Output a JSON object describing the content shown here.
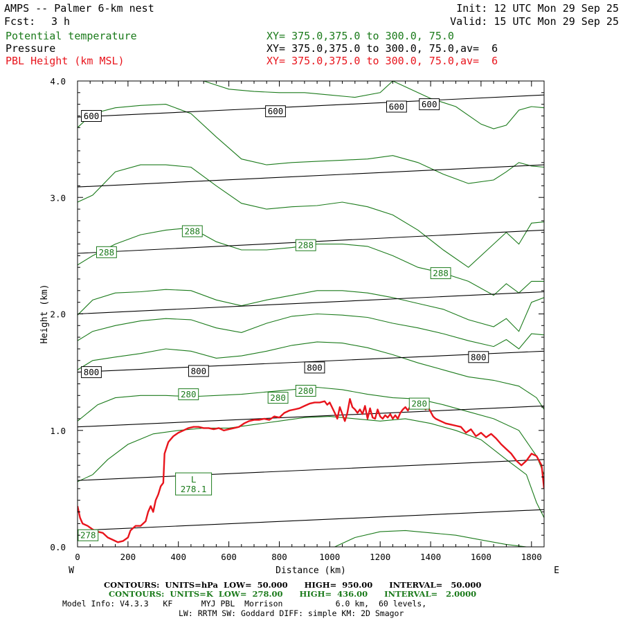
{
  "header": {
    "title": "AMPS -- Palmer 6-km nest",
    "fcst_label": "Fcst:",
    "fcst_value": "3 h",
    "init": "Init: 12 UTC Mon 29 Sep 25",
    "valid": "Valid: 15 UTC Mon 29 Sep 25"
  },
  "legend": [
    {
      "name": "Potential temperature",
      "xy": "XY= 375.0,375.0 to 300.0, 75.0",
      "color": "#1a7a1a"
    },
    {
      "name": "Pressure",
      "xy": "XY= 375.0,375.0 to 300.0, 75.0,av=  6",
      "color": "#000000"
    },
    {
      "name": "PBL Height (km MSL)",
      "xy": "XY= 375.0,375.0 to 300.0, 75.0,av=  6",
      "color": "#e8141c"
    }
  ],
  "footer": {
    "pressure_contours": "CONTOURS:  UNITS=hPa  LOW=  50.000      HIGH=  950.00      INTERVAL=   50.000",
    "theta_contours": "CONTOURS:  UNITS=K  LOW=  278.00      HIGH=  436.00      INTERVAL=   2.0000",
    "model_info_1": "Model Info: V4.3.3   KF      MYJ PBL  Morrison           6.0 km,  60 levels,",
    "model_info_2": "LW: RRTM SW: Goddard DIFF: simple KM: 2D Smagor"
  },
  "chart_data": {
    "type": "line",
    "xlabel": "Distance (km)",
    "ylabel": "Height (km)",
    "xlim": [
      0,
      1850
    ],
    "ylim": [
      0,
      4.0
    ],
    "x_ticks": [
      0,
      200,
      400,
      600,
      800,
      1000,
      1200,
      1400,
      1600,
      1800
    ],
    "x_tick_labels": [
      "0",
      "200",
      "400",
      "600",
      "800",
      "1000",
      "1200",
      "1400",
      "1600",
      "1800"
    ],
    "y_ticks": [
      0,
      1,
      2,
      3,
      4
    ],
    "y_tick_labels": [
      "0.0",
      "1.0",
      "2.0",
      "3.0",
      "4.0"
    ],
    "left_end_label": "W",
    "right_end_label": "E",
    "colors": {
      "pressure": "#000000",
      "theta": "#1a7a1a",
      "pbl": "#e8141c"
    },
    "pressure_isobars": [
      {
        "name": "isobar-a",
        "x": [
          0,
          1850
        ],
        "y": [
          0.14,
          0.32
        ]
      },
      {
        "name": "isobar-b",
        "x": [
          0,
          1850
        ],
        "y": [
          0.57,
          0.75
        ]
      },
      {
        "name": "isobar-c",
        "x": [
          0,
          1850
        ],
        "y": [
          1.03,
          1.21
        ]
      },
      {
        "name": "isobar-800",
        "x": [
          0,
          1850
        ],
        "y": [
          1.5,
          1.68
        ]
      },
      {
        "name": "isobar-d",
        "x": [
          0,
          1850
        ],
        "y": [
          2.0,
          2.19
        ]
      },
      {
        "name": "isobar-e",
        "x": [
          0,
          1850
        ],
        "y": [
          2.52,
          2.72
        ]
      },
      {
        "name": "isobar-f",
        "x": [
          0,
          1850
        ],
        "y": [
          3.09,
          3.28
        ]
      },
      {
        "name": "isobar-600",
        "x": [
          0,
          1850
        ],
        "y": [
          3.69,
          3.88
        ]
      }
    ],
    "pressure_labels": [
      {
        "text": "800",
        "x": 55,
        "y": 1.5
      },
      {
        "text": "800",
        "x": 480,
        "y": 1.51
      },
      {
        "text": "800",
        "x": 940,
        "y": 1.54
      },
      {
        "text": "800",
        "x": 1590,
        "y": 1.63
      },
      {
        "text": "600",
        "x": 55,
        "y": 3.7
      },
      {
        "text": "600",
        "x": 785,
        "y": 3.74
      },
      {
        "text": "600",
        "x": 1265,
        "y": 3.78
      },
      {
        "text": "600",
        "x": 1395,
        "y": 3.8
      }
    ],
    "theta_isentropes": [
      {
        "name": "theta-278",
        "x": [
          1020,
          1100,
          1200,
          1300,
          1400,
          1500,
          1600,
          1700,
          1780,
          1850
        ],
        "y": [
          0.0,
          0.08,
          0.13,
          0.14,
          0.12,
          0.1,
          0.06,
          0.02,
          0.0,
          0.0
        ]
      },
      {
        "name": "theta-280",
        "x": [
          0,
          60,
          120,
          200,
          300,
          400,
          500,
          600,
          700,
          800,
          900,
          1000,
          1100,
          1200,
          1300,
          1400,
          1500,
          1600,
          1700,
          1780,
          1820,
          1850
        ],
        "y": [
          0.56,
          0.62,
          0.75,
          0.88,
          0.97,
          1.0,
          1.02,
          1.02,
          1.05,
          1.08,
          1.11,
          1.12,
          1.1,
          1.08,
          1.1,
          1.06,
          1.0,
          0.92,
          0.75,
          0.62,
          0.38,
          0.25
        ]
      },
      {
        "name": "theta-282",
        "x": [
          0,
          80,
          150,
          250,
          350,
          450,
          550,
          650,
          750,
          850,
          950,
          1050,
          1150,
          1250,
          1350,
          1450,
          1550,
          1650,
          1750,
          1820,
          1850
        ],
        "y": [
          1.08,
          1.22,
          1.28,
          1.3,
          1.3,
          1.29,
          1.3,
          1.31,
          1.33,
          1.35,
          1.37,
          1.35,
          1.31,
          1.28,
          1.27,
          1.22,
          1.16,
          1.1,
          1.0,
          0.78,
          0.62
        ]
      },
      {
        "name": "theta-284",
        "x": [
          0,
          60,
          150,
          250,
          350,
          450,
          550,
          650,
          750,
          850,
          950,
          1050,
          1150,
          1250,
          1350,
          1450,
          1550,
          1650,
          1750,
          1820,
          1850
        ],
        "y": [
          1.52,
          1.6,
          1.63,
          1.66,
          1.7,
          1.68,
          1.62,
          1.64,
          1.68,
          1.73,
          1.76,
          1.75,
          1.71,
          1.65,
          1.58,
          1.52,
          1.46,
          1.43,
          1.38,
          1.28,
          1.18
        ]
      },
      {
        "name": "theta-286",
        "x": [
          0,
          60,
          150,
          250,
          350,
          450,
          550,
          650,
          750,
          850,
          950,
          1050,
          1150,
          1250,
          1350,
          1450,
          1550,
          1650,
          1700,
          1750,
          1800,
          1850
        ],
        "y": [
          1.77,
          1.85,
          1.9,
          1.94,
          1.96,
          1.95,
          1.88,
          1.84,
          1.92,
          1.98,
          2.0,
          1.99,
          1.97,
          1.92,
          1.88,
          1.83,
          1.77,
          1.72,
          1.78,
          1.7,
          1.83,
          1.82
        ]
      },
      {
        "name": "theta-288",
        "x": [
          0,
          60,
          150,
          250,
          350,
          450,
          550,
          650,
          750,
          850,
          950,
          1050,
          1150,
          1250,
          1350,
          1450,
          1550,
          1650,
          1700,
          1750,
          1800,
          1850
        ],
        "y": [
          1.99,
          2.12,
          2.18,
          2.19,
          2.21,
          2.2,
          2.12,
          2.07,
          2.12,
          2.16,
          2.2,
          2.2,
          2.18,
          2.14,
          2.09,
          2.04,
          1.95,
          1.89,
          1.96,
          1.85,
          2.1,
          2.14
        ]
      },
      {
        "name": "theta-290",
        "x": [
          0,
          60,
          150,
          250,
          350,
          450,
          550,
          650,
          750,
          850,
          950,
          1050,
          1150,
          1250,
          1350,
          1450,
          1550,
          1650,
          1700,
          1750,
          1800,
          1850
        ],
        "y": [
          2.42,
          2.5,
          2.6,
          2.68,
          2.72,
          2.74,
          2.62,
          2.55,
          2.55,
          2.57,
          2.6,
          2.6,
          2.58,
          2.5,
          2.4,
          2.35,
          2.28,
          2.16,
          2.26,
          2.18,
          2.28,
          2.28
        ]
      },
      {
        "name": "theta-292",
        "x": [
          0,
          60,
          150,
          250,
          350,
          450,
          550,
          650,
          750,
          850,
          950,
          1050,
          1150,
          1250,
          1350,
          1450,
          1550,
          1650,
          1700,
          1750,
          1800,
          1850
        ],
        "y": [
          2.96,
          3.02,
          3.22,
          3.28,
          3.28,
          3.26,
          3.1,
          2.95,
          2.9,
          2.92,
          2.93,
          2.96,
          2.92,
          2.85,
          2.72,
          2.55,
          2.4,
          2.6,
          2.7,
          2.6,
          2.78,
          2.79
        ]
      },
      {
        "name": "theta-294",
        "x": [
          0,
          60,
          150,
          250,
          350,
          450,
          550,
          650,
          750,
          850,
          950,
          1050,
          1150,
          1250,
          1350,
          1450,
          1550,
          1650,
          1700,
          1750,
          1800,
          1850
        ],
        "y": [
          3.6,
          3.72,
          3.77,
          3.79,
          3.8,
          3.72,
          3.52,
          3.33,
          3.28,
          3.3,
          3.31,
          3.32,
          3.33,
          3.36,
          3.3,
          3.2,
          3.12,
          3.15,
          3.22,
          3.3,
          3.27,
          3.26
        ]
      },
      {
        "name": "theta-296",
        "x": [
          500,
          600,
          700,
          800,
          900,
          1000,
          1100,
          1200,
          1250,
          1300,
          1400,
          1500,
          1600,
          1650,
          1700,
          1750,
          1800,
          1850
        ],
        "y": [
          4.0,
          3.93,
          3.91,
          3.9,
          3.9,
          3.88,
          3.86,
          3.9,
          4.0,
          3.95,
          3.85,
          3.78,
          3.63,
          3.59,
          3.62,
          3.75,
          3.78,
          3.77
        ]
      }
    ],
    "theta_labels": [
      {
        "text": "278",
        "x": 42,
        "y": 0.1
      },
      {
        "text": "280",
        "x": 440,
        "y": 1.31
      },
      {
        "text": "280",
        "x": 795,
        "y": 1.28
      },
      {
        "text": "280",
        "x": 905,
        "y": 1.34
      },
      {
        "text": "280",
        "x": 1355,
        "y": 1.23
      },
      {
        "text": "288",
        "x": 115,
        "y": 2.53
      },
      {
        "text": "288",
        "x": 455,
        "y": 2.71
      },
      {
        "text": "288",
        "x": 905,
        "y": 2.59
      },
      {
        "text": "288",
        "x": 1440,
        "y": 2.35
      }
    ],
    "low_marker": {
      "letter": "L",
      "value": "278.1",
      "x": 460,
      "y": 0.54
    },
    "pbl_height": {
      "name": "PBL Height (km MSL)",
      "x": [
        0,
        10,
        20,
        40,
        60,
        80,
        100,
        120,
        140,
        160,
        180,
        200,
        210,
        230,
        250,
        270,
        280,
        290,
        300,
        310,
        320,
        330,
        340,
        345,
        360,
        380,
        400,
        420,
        440,
        460,
        480,
        500,
        520,
        540,
        560,
        580,
        600,
        620,
        640,
        660,
        680,
        700,
        720,
        740,
        760,
        780,
        800,
        820,
        840,
        860,
        880,
        900,
        920,
        940,
        960,
        980,
        990,
        1000,
        1020,
        1030,
        1040,
        1060,
        1070,
        1080,
        1090,
        1100,
        1110,
        1120,
        1130,
        1140,
        1150,
        1160,
        1170,
        1180,
        1190,
        1200,
        1210,
        1220,
        1230,
        1240,
        1250,
        1260,
        1270,
        1280,
        1290,
        1300,
        1310,
        1320,
        1330,
        1340,
        1350,
        1360,
        1370,
        1380,
        1390,
        1400,
        1410,
        1420,
        1440,
        1460,
        1480,
        1500,
        1520,
        1540,
        1560,
        1580,
        1600,
        1620,
        1640,
        1660,
        1680,
        1700,
        1720,
        1740,
        1750,
        1760,
        1780,
        1800,
        1820,
        1840,
        1850
      ],
      "y": [
        0.35,
        0.25,
        0.2,
        0.18,
        0.15,
        0.13,
        0.12,
        0.08,
        0.06,
        0.04,
        0.05,
        0.08,
        0.14,
        0.18,
        0.18,
        0.22,
        0.3,
        0.35,
        0.3,
        0.4,
        0.45,
        0.52,
        0.55,
        0.8,
        0.9,
        0.95,
        0.98,
        1.0,
        1.02,
        1.03,
        1.03,
        1.02,
        1.02,
        1.01,
        1.02,
        1.0,
        1.01,
        1.02,
        1.03,
        1.06,
        1.08,
        1.09,
        1.09,
        1.1,
        1.09,
        1.12,
        1.11,
        1.15,
        1.17,
        1.18,
        1.19,
        1.21,
        1.23,
        1.24,
        1.24,
        1.25,
        1.22,
        1.24,
        1.15,
        1.1,
        1.2,
        1.08,
        1.15,
        1.27,
        1.2,
        1.18,
        1.15,
        1.18,
        1.14,
        1.21,
        1.1,
        1.19,
        1.11,
        1.1,
        1.18,
        1.12,
        1.1,
        1.13,
        1.11,
        1.14,
        1.1,
        1.13,
        1.1,
        1.15,
        1.18,
        1.2,
        1.17,
        1.21,
        1.19,
        1.2,
        1.22,
        1.19,
        1.21,
        1.18,
        1.2,
        1.16,
        1.12,
        1.1,
        1.08,
        1.06,
        1.05,
        1.04,
        1.03,
        0.98,
        1.01,
        0.95,
        0.98,
        0.94,
        0.97,
        0.93,
        0.88,
        0.84,
        0.8,
        0.74,
        0.72,
        0.7,
        0.74,
        0.8,
        0.78,
        0.7,
        0.5
      ]
    }
  }
}
